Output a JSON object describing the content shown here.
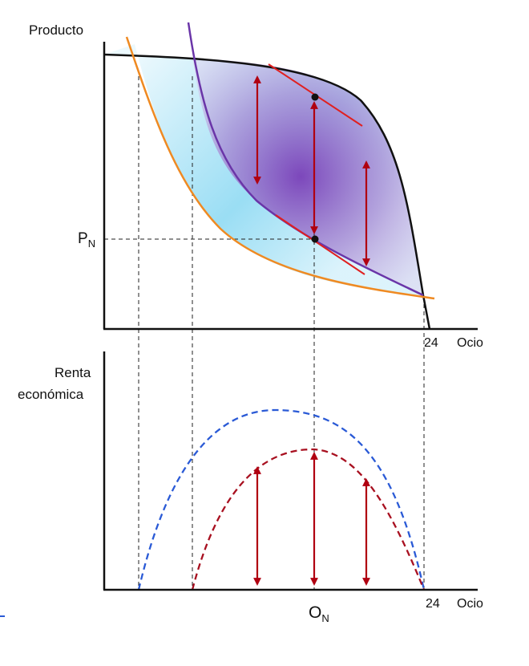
{
  "top_panel": {
    "y_axis_label": "Producto",
    "price_label_main": "P",
    "price_label_sub": "N",
    "x_tick_label": "24",
    "x_axis_label": "Ocio"
  },
  "bottom_panel": {
    "y_axis_label_line1": "Renta",
    "y_axis_label_line2": "económica",
    "x_point_label_main": "O",
    "x_point_label_sub": "N",
    "x_tick_label": "24",
    "x_axis_label": "Ocio"
  },
  "colors": {
    "frontier": "#111111",
    "purple_curve": "#6a35a8",
    "orange_curve": "#ef8a22",
    "tangent": "#e02020",
    "arrows": "#b00010",
    "blue_dashed": "#2a5ad6",
    "red_dashed": "#a81020",
    "purple_fill_center": "#7a3fb8",
    "blue_fill": "#7fd6f2"
  }
}
